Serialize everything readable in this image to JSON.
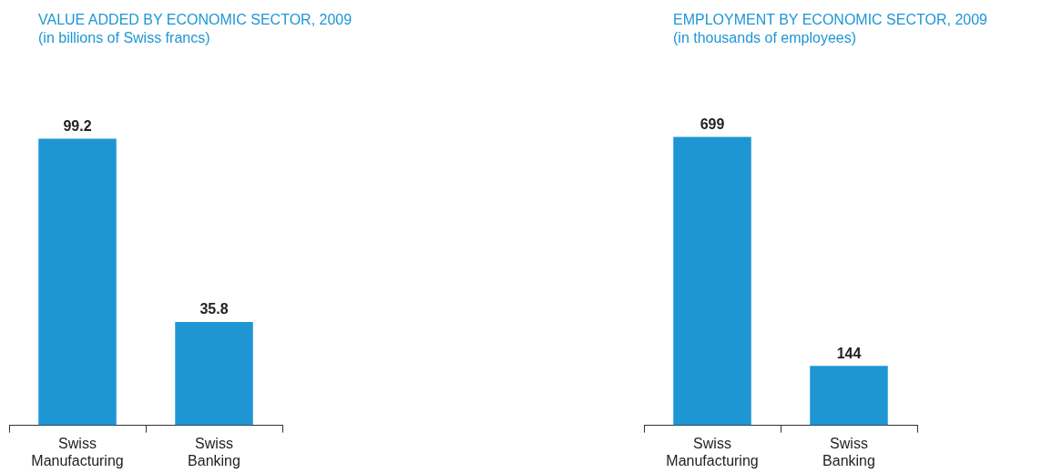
{
  "chart_data": [
    {
      "type": "bar",
      "title": "VALUE ADDED BY ECONOMIC SECTOR, 2009",
      "subtitle": "(in billions of Swiss francs)",
      "categories": [
        "Swiss Manufacturing",
        "Swiss Banking"
      ],
      "values": [
        99.2,
        35.8
      ],
      "color": "#1e96d4",
      "data_labels": true,
      "grid": false,
      "legend": false,
      "tick_labels": "x"
    },
    {
      "type": "bar",
      "title": "EMPLOYMENT BY ECONOMIC SECTOR, 2009",
      "subtitle": "(in thousands of employees)",
      "categories": [
        "Swiss Manufacturing",
        "Swiss Banking"
      ],
      "values": [
        699,
        144
      ],
      "color": "#1e96d4",
      "data_labels": true,
      "grid": false,
      "legend": false,
      "tick_labels": "x"
    }
  ]
}
